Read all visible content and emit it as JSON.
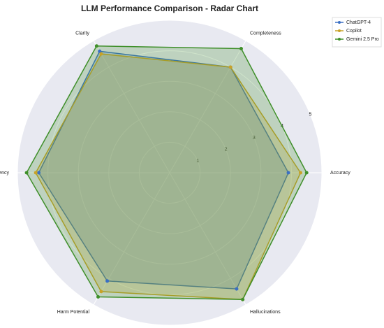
{
  "chart_data": {
    "type": "radar",
    "title": "LLM Performance Comparison - Radar Chart",
    "categories": [
      "Accuracy",
      "Completeness",
      "Clarity",
      "Currency",
      "Harm Potential",
      "Hallucinations"
    ],
    "rlim": [
      0,
      5
    ],
    "rticks": [
      1,
      2,
      3,
      4,
      5
    ],
    "grid": true,
    "legend": "upper right",
    "series": [
      {
        "name": "ChatGPT-4",
        "color": "#3a6fc4",
        "values": [
          3.9,
          4.0,
          4.6,
          4.3,
          4.1,
          4.4
        ]
      },
      {
        "name": "Copilot",
        "color": "#c9a227",
        "values": [
          4.3,
          4.0,
          4.5,
          4.4,
          4.5,
          4.8
        ]
      },
      {
        "name": "Gemini 2.5 Pro",
        "color": "#3f8f2a",
        "values": [
          4.5,
          4.7,
          4.8,
          4.7,
          4.7,
          4.8
        ]
      }
    ]
  }
}
